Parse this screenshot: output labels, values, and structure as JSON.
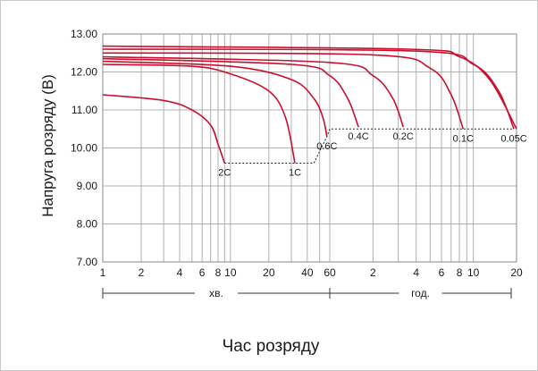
{
  "chart_data": {
    "type": "line",
    "xlabel": "Час розряду",
    "ylabel": "Напруга розряду (В)",
    "y_scale": "linear",
    "x_scale": "log",
    "ylim": [
      7.0,
      13.0
    ],
    "y_ticks": [
      "13.00",
      "12.00",
      "11.00",
      "10.00",
      "9.00",
      "8.00",
      "7.00"
    ],
    "grid": true,
    "minutes_ticks": [
      "1",
      "2",
      "4",
      "6",
      "8",
      "10",
      "20",
      "40",
      "60"
    ],
    "hours_ticks": [
      "2",
      "4",
      "6",
      "8",
      "10",
      "20"
    ],
    "unit_minutes": "хв.",
    "unit_hours": "год.",
    "line_color": "#c8102e",
    "series": [
      {
        "name": "2C",
        "x_min": [
          1,
          3,
          5,
          7,
          8,
          9
        ],
        "y": [
          11.4,
          11.25,
          11.0,
          10.6,
          10.1,
          9.6
        ]
      },
      {
        "name": "1C",
        "x_min": [
          1,
          5,
          10,
          20,
          27,
          32
        ],
        "y": [
          12.2,
          12.15,
          11.95,
          11.5,
          10.8,
          9.6
        ]
      },
      {
        "name": "0.6C",
        "x_min": [
          1,
          10,
          30,
          45,
          53,
          57
        ],
        "y": [
          12.28,
          12.15,
          11.8,
          11.3,
          10.8,
          10.3
        ]
      },
      {
        "name": "0.4C",
        "x_min": [
          1,
          30,
          60,
          80,
          95
        ],
        "y": [
          12.35,
          12.2,
          11.9,
          11.3,
          10.55
        ]
      },
      {
        "name": "0.2C",
        "x_min": [
          1,
          60,
          120,
          165,
          195
        ],
        "y": [
          12.4,
          12.25,
          11.9,
          11.3,
          10.55
        ]
      },
      {
        "name": "0.1C",
        "x_min": [
          1,
          120,
          300,
          420,
          510
        ],
        "y": [
          12.5,
          12.45,
          12.1,
          11.4,
          10.5
        ]
      },
      {
        "name": "0.05C",
        "x_min": [
          1,
          240,
          600,
          900,
          1150
        ],
        "y": [
          12.6,
          12.55,
          12.2,
          11.5,
          10.5
        ]
      },
      {
        "name": "",
        "x_min": [
          1,
          210,
          480,
          780,
          1200
        ],
        "y": [
          12.68,
          12.6,
          12.4,
          11.8,
          10.5
        ]
      }
    ],
    "cutoff_line": {
      "x_min": [
        9,
        32,
        32,
        45,
        57,
        60,
        1150
      ],
      "y": [
        9.6,
        9.6,
        9.6,
        9.6,
        10.3,
        10.5,
        10.5
      ]
    }
  }
}
